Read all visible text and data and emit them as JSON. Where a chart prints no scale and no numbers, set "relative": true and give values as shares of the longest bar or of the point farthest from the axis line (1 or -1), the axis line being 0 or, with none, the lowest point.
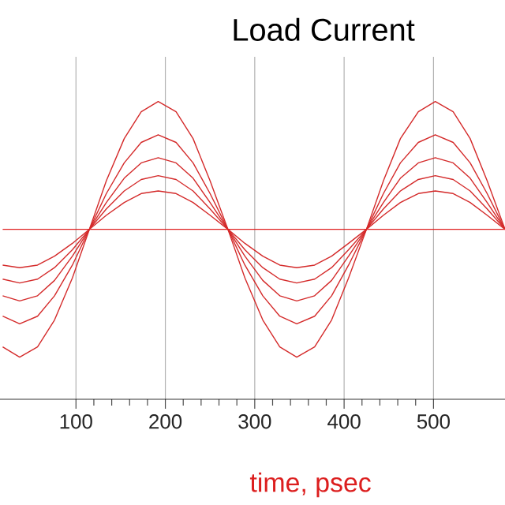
{
  "chart_data": {
    "type": "line",
    "title": "Load Current",
    "xlabel": "time, psec",
    "relative": true,
    "x": [
      18,
      37,
      57,
      76,
      96,
      115,
      134,
      154,
      173,
      192,
      212,
      231,
      250,
      270,
      289,
      309,
      328,
      347,
      367,
      386,
      405,
      425,
      444,
      463,
      483,
      502,
      522,
      541,
      560,
      580
    ],
    "xlim": [
      15,
      580
    ],
    "xticks": [
      100,
      200,
      300,
      400,
      500
    ],
    "series": [
      {
        "color": "#d42a2a",
        "values": [
          -0.92,
          -1,
          -0.92,
          -0.71,
          -0.38,
          0,
          0.38,
          0.71,
          0.92,
          1,
          0.92,
          0.71,
          0.38,
          0,
          -0.38,
          -0.71,
          -0.92,
          -1,
          -0.92,
          -0.71,
          -0.38,
          0,
          0.38,
          0.71,
          0.92,
          1,
          0.92,
          0.71,
          0.38,
          0
        ]
      },
      {
        "color": "#d42a2a",
        "values": [
          -0.68,
          -0.74,
          -0.68,
          -0.52,
          -0.28,
          0,
          0.28,
          0.52,
          0.68,
          0.74,
          0.68,
          0.52,
          0.28,
          0,
          -0.28,
          -0.52,
          -0.68,
          -0.74,
          -0.68,
          -0.52,
          -0.28,
          0,
          0.28,
          0.52,
          0.68,
          0.74,
          0.68,
          0.52,
          0.28,
          0
        ]
      },
      {
        "color": "#d42a2a",
        "values": [
          -0.52,
          -0.56,
          -0.52,
          -0.4,
          -0.21,
          0,
          0.21,
          0.4,
          0.52,
          0.56,
          0.52,
          0.4,
          0.21,
          0,
          -0.21,
          -0.4,
          -0.52,
          -0.56,
          -0.52,
          -0.4,
          -0.21,
          0,
          0.21,
          0.4,
          0.52,
          0.56,
          0.52,
          0.4,
          0.21,
          0
        ]
      },
      {
        "color": "#d42a2a",
        "values": [
          -0.39,
          -0.42,
          -0.39,
          -0.3,
          -0.16,
          0,
          0.16,
          0.3,
          0.39,
          0.42,
          0.39,
          0.3,
          0.16,
          0,
          -0.16,
          -0.3,
          -0.39,
          -0.42,
          -0.39,
          -0.3,
          -0.16,
          0,
          0.16,
          0.3,
          0.39,
          0.42,
          0.39,
          0.3,
          0.16,
          0
        ]
      },
      {
        "color": "#d42a2a",
        "values": [
          -0.28,
          -0.3,
          -0.28,
          -0.21,
          -0.11,
          0,
          0.11,
          0.21,
          0.28,
          0.3,
          0.28,
          0.21,
          0.11,
          0,
          -0.11,
          -0.21,
          -0.28,
          -0.3,
          -0.28,
          -0.21,
          -0.11,
          0,
          0.11,
          0.21,
          0.28,
          0.3,
          0.28,
          0.21,
          0.11,
          0
        ]
      },
      {
        "color": "#e02020",
        "values": [
          0,
          0,
          0,
          0,
          0,
          0,
          0,
          0,
          0,
          0,
          0,
          0,
          0,
          0,
          0,
          0,
          0,
          0,
          0,
          0,
          0,
          0,
          0,
          0,
          0,
          0,
          0,
          0,
          0,
          0
        ]
      }
    ],
    "grid": true,
    "tick_labels": "x"
  }
}
